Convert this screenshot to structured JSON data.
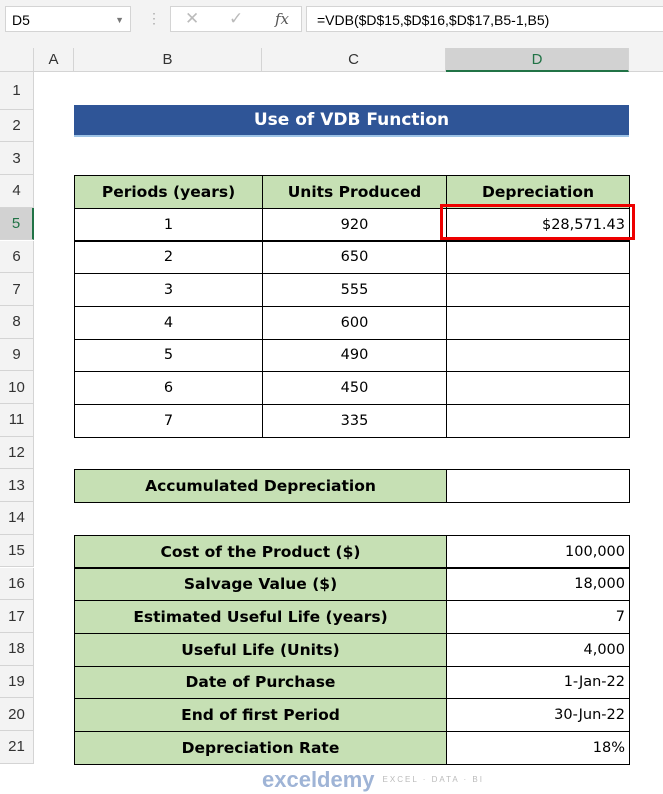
{
  "toolbar": {
    "name_box": "D5",
    "cancel_icon": "✕",
    "enter_icon": "✓",
    "fx_label": "fx",
    "formula": "=VDB($D$15,$D$16,$D$17,B5-1,B5)"
  },
  "columns": [
    "A",
    "B",
    "C",
    "D"
  ],
  "rows": [
    "1",
    "2",
    "3",
    "4",
    "5",
    "6",
    "7",
    "8",
    "9",
    "10",
    "11",
    "12",
    "13",
    "14",
    "15",
    "16",
    "17",
    "18",
    "19",
    "20",
    "21"
  ],
  "title": "Use of VDB Function",
  "table": {
    "headers": [
      "Periods (years)",
      "Units Produced",
      "Depreciation"
    ],
    "rows": [
      [
        "1",
        "920",
        "$28,571.43"
      ],
      [
        "2",
        "650",
        ""
      ],
      [
        "3",
        "555",
        ""
      ],
      [
        "4",
        "600",
        ""
      ],
      [
        "5",
        "490",
        ""
      ],
      [
        "6",
        "450",
        ""
      ],
      [
        "7",
        "335",
        ""
      ]
    ]
  },
  "accumulated": {
    "label": "Accumulated Depreciation",
    "value": ""
  },
  "params": [
    [
      "Cost of the Product ($)",
      "100,000"
    ],
    [
      "Salvage Value ($)",
      "18,000"
    ],
    [
      "Estimated Useful Life (years)",
      "7"
    ],
    [
      "Useful Life (Units)",
      "4,000"
    ],
    [
      "Date of Purchase",
      "1-Jan-22"
    ],
    [
      "End of first Period",
      "30-Jun-22"
    ],
    [
      "Depreciation Rate",
      "18%"
    ]
  ],
  "watermark": {
    "name": "exceldemy",
    "tagline": "EXCEL · DATA · BI"
  },
  "colors": {
    "title_bg": "#2F5597",
    "header_bg": "#C6E0B4",
    "selection": "#FF0000"
  }
}
